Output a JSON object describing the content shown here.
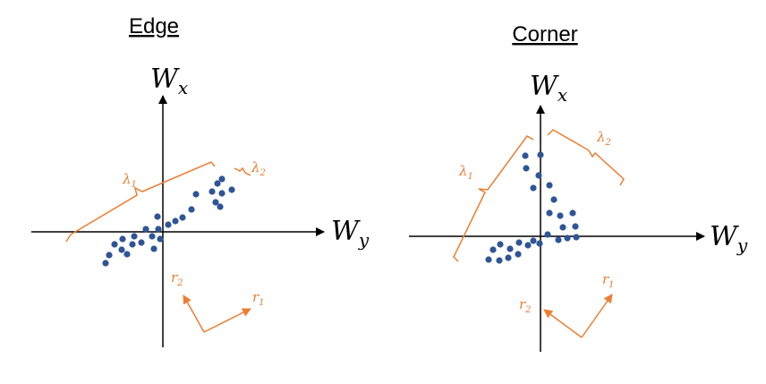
{
  "colors": {
    "orange": "#ed7d31",
    "dot": "#2f5597",
    "axis": "#000000"
  },
  "panels": {
    "edge": {
      "title": "Edge",
      "axis_x": {
        "base": "W",
        "sub": "x"
      },
      "axis_y": {
        "base": "W",
        "sub": "y"
      },
      "lambda1": {
        "base": "λ",
        "sub": "1"
      },
      "lambda2": {
        "base": "λ",
        "sub": "2"
      },
      "r1": {
        "base": "r",
        "sub": "1"
      },
      "r2": {
        "base": "r",
        "sub": "2"
      }
    },
    "corner": {
      "title": "Corner",
      "axis_x": {
        "base": "W",
        "sub": "x"
      },
      "axis_y": {
        "base": "W",
        "sub": "y"
      },
      "lambda1": {
        "base": "λ",
        "sub": "1"
      },
      "lambda2": {
        "base": "λ",
        "sub": "2"
      },
      "r1": {
        "base": "r",
        "sub": "1"
      },
      "r2": {
        "base": "r",
        "sub": "2"
      }
    }
  }
}
